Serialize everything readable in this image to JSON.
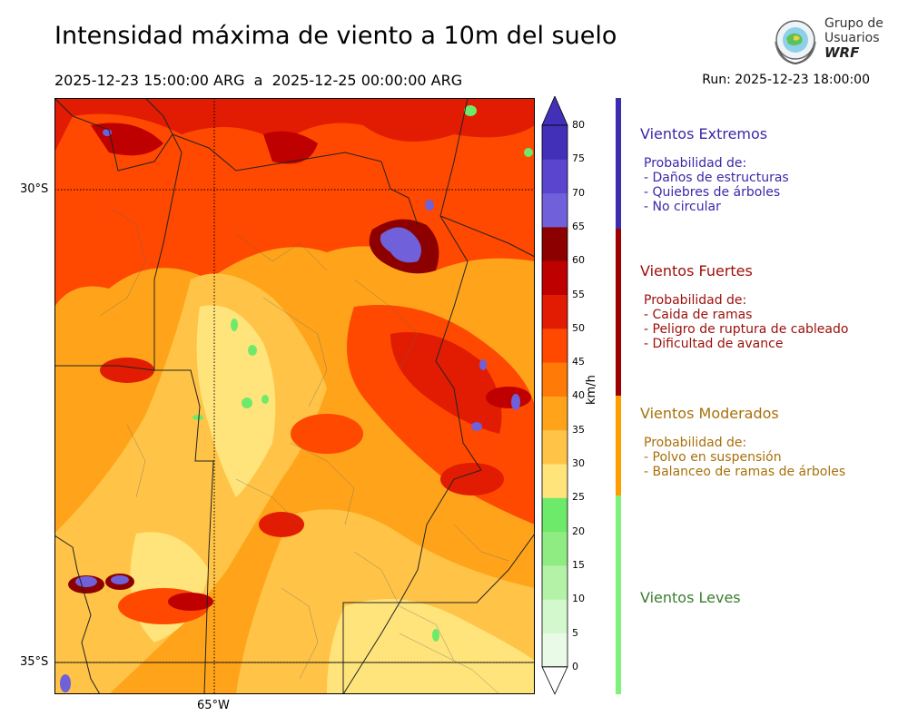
{
  "header": {
    "title": "Intensidad máxima de viento a 10m del suelo",
    "period": "2025-12-23 15:00:00 ARG  a  2025-12-25 00:00:00 ARG",
    "run": "Run: 2025-12-23 18:00:00"
  },
  "logo": {
    "line1": "Grupo de",
    "line2": "Usuarios",
    "line3": "WRF"
  },
  "map": {
    "lat_labels": [
      "30°S",
      "35°S"
    ],
    "lon_labels": [
      "65°W"
    ]
  },
  "colorbar": {
    "unit": "km/h",
    "ticks": [
      "0",
      "5",
      "10",
      "15",
      "20",
      "25",
      "30",
      "35",
      "40",
      "45",
      "50",
      "55",
      "60",
      "65",
      "70",
      "75",
      "80"
    ],
    "colors": [
      "#e9fbe6",
      "#d3f8cd",
      "#b4f2a8",
      "#8fec82",
      "#6eea6a",
      "#ffe47c",
      "#ffc447",
      "#ffa41a",
      "#ff7a06",
      "#ff4800",
      "#e11c02",
      "#bf0000",
      "#8d0000",
      "#7060da",
      "#5a45cf",
      "#4330b9"
    ]
  },
  "categories": [
    {
      "title": "Vientos Extremos",
      "color": "#3a28a8",
      "bar": "#3b2cb0",
      "lines": [
        "Probabilidad de:",
        "- Daños de estructuras",
        "- Quiebres de árboles",
        "- No circular"
      ]
    },
    {
      "title": "Vientos Fuertes",
      "color": "#9b0f0a",
      "bar": "#9c0000",
      "lines": [
        "Probabilidad de:",
        "- Caida de ramas",
        "- Peligro de ruptura de cableado",
        "- Dificultad de avance"
      ]
    },
    {
      "title": "Vientos Moderados",
      "color": "#a8700a",
      "bar": "#ff9d00",
      "lines": [
        "Probabilidad de:",
        "- Polvo en suspensión",
        "- Balanceo de ramas de árboles"
      ]
    },
    {
      "title": "Vientos Leves",
      "color": "#3a7d2c",
      "bar": "#7ff07a",
      "lines": []
    }
  ]
}
